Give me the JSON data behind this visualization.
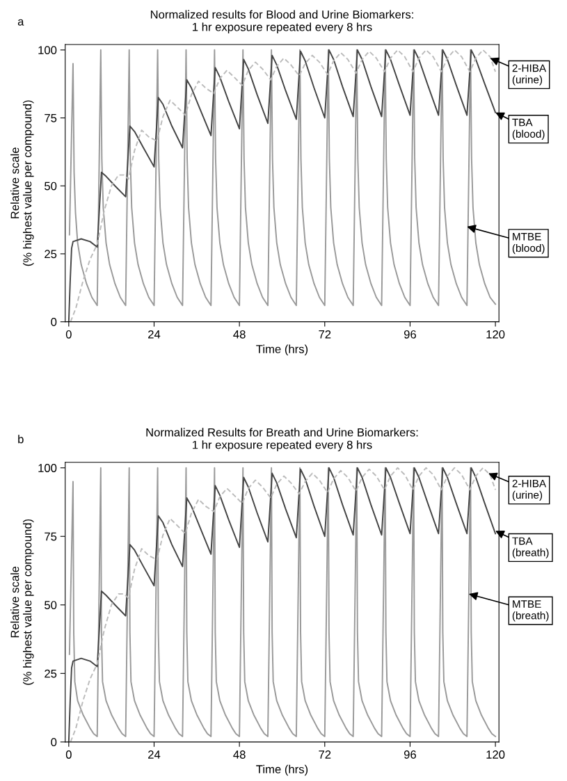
{
  "chart_data": [
    {
      "type": "line",
      "title": "Normalized results for Blood and Urine Biomarkers:\n1 hr exposure repeated every 8 hrs",
      "xlabel": "Time (hrs)",
      "ylabel": "Relative scale\n(% highest value per compound)",
      "xlim": [
        -1,
        121
      ],
      "ylim": [
        0,
        102
      ],
      "xticks": [
        0,
        24,
        48,
        72,
        96,
        120
      ],
      "yticks": [
        0,
        25,
        50,
        75,
        100
      ],
      "series": [
        {
          "color": "#999999",
          "line_style": "solid",
          "x": [
            0.2,
            1.2,
            1.5,
            1.9,
            2.5,
            3.5,
            5,
            6.5,
            8,
            9,
            9.3,
            9.7,
            10.5,
            11.5,
            13,
            14.5,
            16,
            17,
            17.3,
            17.7,
            18.5,
            19.5,
            21,
            22.5,
            24,
            25,
            25.3,
            25.7,
            26.5,
            27.5,
            29,
            30.5,
            32,
            33,
            33.3,
            33.7,
            34.5,
            35.5,
            37,
            38.5,
            40,
            41,
            41.3,
            41.7,
            42.5,
            43.5,
            45,
            46.5,
            48,
            49,
            49.3,
            49.7,
            50.5,
            51.5,
            53,
            54.5,
            56,
            57,
            57.3,
            57.7,
            58.5,
            59.5,
            61,
            62.5,
            64,
            65,
            65.3,
            65.7,
            66.5,
            67.5,
            69,
            70.5,
            72,
            73,
            73.3,
            73.7,
            74.5,
            75.5,
            77,
            78.5,
            80,
            81,
            81.3,
            81.7,
            82.5,
            83.5,
            85,
            86.5,
            88,
            89,
            89.3,
            89.7,
            90.5,
            91.5,
            93,
            94.5,
            96,
            97,
            97.3,
            97.7,
            98.5,
            99.5,
            101,
            102.5,
            104,
            105,
            105.3,
            105.7,
            106.5,
            107.5,
            109,
            110.5,
            112,
            113,
            113.3,
            113.7,
            114.5,
            115.5,
            117,
            118.5,
            120
          ],
          "values": [
            32,
            95,
            55,
            40,
            29,
            21,
            14,
            9,
            6,
            100,
            60,
            42,
            29,
            21,
            14,
            9,
            6,
            100,
            60,
            42,
            29,
            21,
            14,
            9,
            6,
            100,
            60,
            42,
            29,
            21,
            14,
            9,
            6,
            100,
            60,
            42,
            29,
            21,
            14,
            9,
            6,
            100,
            60,
            42,
            29,
            21,
            14,
            9,
            6,
            100,
            60,
            42,
            29,
            21,
            14,
            9,
            6,
            100,
            60,
            42,
            29,
            21,
            14,
            9,
            6,
            100,
            60,
            42,
            29,
            21,
            14,
            9,
            6,
            100,
            60,
            42,
            29,
            21,
            14,
            9,
            6,
            100,
            60,
            42,
            29,
            21,
            14,
            9,
            6,
            100,
            60,
            42,
            29,
            21,
            14,
            9,
            6,
            100,
            60,
            42,
            29,
            21,
            14,
            9,
            6,
            100,
            60,
            42,
            29,
            21,
            14,
            9,
            6,
            100,
            60,
            42,
            29,
            21,
            14,
            9,
            6.5
          ]
        },
        {
          "color": "#444444",
          "line_style": "solid",
          "x": [
            0,
            0.4,
            0.8,
            1.2,
            3.5,
            6,
            8,
            9.2,
            10.5,
            13,
            16,
            17.2,
            18.5,
            21,
            24,
            25.2,
            26.5,
            29,
            32,
            33.2,
            34.5,
            37,
            40,
            41.2,
            42.5,
            45,
            48,
            49.2,
            50.5,
            53,
            56,
            57.2,
            58.5,
            61,
            64,
            65.2,
            66.5,
            69,
            72,
            73.2,
            74.5,
            77,
            80,
            81.2,
            82.5,
            85,
            88,
            89.2,
            90.5,
            93,
            96,
            97.2,
            98.5,
            101,
            104,
            105.2,
            106.5,
            109,
            112,
            113.2,
            114.5,
            117,
            120
          ],
          "values": [
            0,
            15,
            27,
            29.5,
            30.5,
            29.5,
            27.5,
            55,
            53.5,
            50,
            46,
            72,
            70,
            64,
            57,
            82.5,
            80,
            72,
            64,
            89,
            86,
            78,
            68.5,
            93.5,
            90,
            81,
            71,
            96.5,
            93,
            83.5,
            73,
            98,
            94.5,
            85,
            74.5,
            99.5,
            96,
            86,
            75,
            100,
            96.5,
            86.5,
            75.5,
            100,
            96.5,
            86.5,
            75.5,
            100,
            96.5,
            87,
            76,
            100,
            96.5,
            87,
            76,
            100,
            96.5,
            87,
            76,
            100,
            96.5,
            87.5,
            77
          ]
        },
        {
          "color": "#bbbbbb",
          "line_style": "dashed",
          "x": [
            0.5,
            2,
            4,
            6,
            8,
            10,
            12,
            14,
            15.5,
            16.8,
            18.5,
            20.5,
            22.5,
            24.8,
            26.5,
            28.5,
            30.5,
            32.8,
            34.5,
            36.5,
            38.5,
            40.8,
            42.5,
            44.5,
            46.5,
            48.8,
            50.5,
            52.5,
            54.5,
            56.8,
            58.5,
            60.5,
            62.5,
            64.8,
            66.5,
            68.5,
            70.5,
            72.8,
            74.5,
            76.5,
            78.5,
            80.8,
            82.5,
            84.5,
            86.5,
            88.8,
            90.5,
            92.5,
            94.5,
            96.8,
            98.5,
            100.5,
            102.5,
            104.8,
            106.5,
            108.5,
            110.5,
            112.8,
            114.5,
            116.5,
            118.5,
            120
          ],
          "values": [
            0,
            5,
            15,
            23,
            28.5,
            41,
            50,
            54,
            54,
            52.5,
            63,
            70.5,
            68,
            66.5,
            75.5,
            81.5,
            79,
            76,
            83.5,
            88.5,
            86,
            84,
            89.5,
            92.5,
            90,
            87,
            92.5,
            95.5,
            93,
            89,
            94,
            97,
            94.5,
            90.5,
            95,
            98,
            95.5,
            91,
            96,
            99,
            96.5,
            91.5,
            96.5,
            99.5,
            97,
            92,
            97,
            100,
            97.5,
            92,
            97,
            100,
            97.5,
            92,
            97,
            100,
            97.5,
            92,
            97,
            100,
            97.5,
            92
          ]
        }
      ],
      "annotations": [
        "a",
        {
          "text": "2-HIBA\n(urine)",
          "x": 118.5,
          "y": 97
        },
        {
          "text": "TBA\n(blood)",
          "x": 120,
          "y": 77
        },
        {
          "text": "MTBE\n(blood)",
          "x": 112,
          "y": 35
        }
      ]
    },
    {
      "type": "line",
      "title": "Normalized Results for Breath and Urine Biomarkers:\n1 hr exposure repeated every 8 hrs",
      "xlabel": "Time (hrs)",
      "ylabel": "Relative scale\n(% highest value per compound)",
      "xlim": [
        -1,
        121
      ],
      "ylim": [
        0,
        102
      ],
      "xticks": [
        0,
        24,
        48,
        72,
        96,
        120
      ],
      "yticks": [
        0,
        25,
        50,
        75,
        100
      ],
      "series": [
        {
          "color": "#999999",
          "line_style": "solid",
          "x": [
            0.2,
            1.2,
            1.4,
            1.7,
            2.5,
            4,
            6,
            7,
            8,
            9,
            9.2,
            9.5,
            10.5,
            12,
            14,
            15,
            16,
            17,
            17.2,
            17.5,
            18.5,
            20,
            22,
            23,
            24,
            25,
            25.2,
            25.5,
            26.5,
            28,
            30,
            31,
            32,
            33,
            33.2,
            33.5,
            34.5,
            36,
            38,
            39,
            40,
            41,
            41.2,
            41.5,
            42.5,
            44,
            46,
            47,
            48,
            49,
            49.2,
            49.5,
            50.5,
            52,
            54,
            55,
            56,
            57,
            57.2,
            57.5,
            58.5,
            60,
            62,
            63,
            64,
            65,
            65.2,
            65.5,
            66.5,
            68,
            70,
            71,
            72,
            73,
            73.2,
            73.5,
            74.5,
            76,
            78,
            79,
            80,
            81,
            81.2,
            81.5,
            82.5,
            84,
            86,
            87,
            88,
            89,
            89.2,
            89.5,
            90.5,
            92,
            94,
            95,
            96,
            97,
            97.2,
            97.5,
            98.5,
            100,
            102,
            103,
            104,
            105,
            105.2,
            105.5,
            106.5,
            108,
            110,
            111,
            112,
            113,
            113.2,
            113.5,
            114.5,
            116,
            118,
            119,
            120
          ],
          "values": [
            32,
            95,
            40,
            22,
            15,
            10,
            5,
            3,
            2,
            100,
            40,
            22,
            15,
            10,
            5,
            3,
            2,
            100,
            40,
            22,
            15,
            10,
            5,
            3,
            2,
            100,
            40,
            22,
            15,
            10,
            5,
            3,
            2,
            100,
            40,
            22,
            15,
            10,
            5,
            3,
            2,
            100,
            40,
            22,
            15,
            10,
            5,
            3,
            2,
            100,
            40,
            22,
            15,
            10,
            5,
            3,
            2,
            100,
            40,
            22,
            15,
            10,
            5,
            3,
            2,
            100,
            40,
            22,
            15,
            10,
            5,
            3,
            2,
            100,
            40,
            22,
            15,
            10,
            5,
            3,
            2,
            100,
            40,
            22,
            15,
            10,
            5,
            3,
            2,
            100,
            40,
            22,
            15,
            10,
            5,
            3,
            2,
            100,
            40,
            22,
            15,
            10,
            5,
            3,
            2,
            100,
            40,
            22,
            15,
            10,
            5,
            3,
            2,
            100,
            40,
            22,
            15,
            10,
            5,
            3,
            2
          ]
        },
        {
          "color": "#444444",
          "line_style": "solid",
          "x": [
            0,
            0.4,
            0.8,
            1.2,
            3.5,
            6,
            8,
            9.2,
            10.5,
            13,
            16,
            17.2,
            18.5,
            21,
            24,
            25.2,
            26.5,
            29,
            32,
            33.2,
            34.5,
            37,
            40,
            41.2,
            42.5,
            45,
            48,
            49.2,
            50.5,
            53,
            56,
            57.2,
            58.5,
            61,
            64,
            65.2,
            66.5,
            69,
            72,
            73.2,
            74.5,
            77,
            80,
            81.2,
            82.5,
            85,
            88,
            89.2,
            90.5,
            93,
            96,
            97.2,
            98.5,
            101,
            104,
            105.2,
            106.5,
            109,
            112,
            113.2,
            114.5,
            117,
            120
          ],
          "values": [
            0,
            15,
            27,
            29.5,
            30.5,
            29.5,
            27.5,
            55,
            53.5,
            50,
            46,
            72,
            70,
            64,
            57,
            82.5,
            80,
            72,
            64,
            89,
            86,
            78,
            68.5,
            93.5,
            90,
            81,
            71,
            96.5,
            93,
            83.5,
            73,
            98,
            94.5,
            85,
            74.5,
            99.5,
            96,
            86,
            75,
            100,
            96.5,
            86.5,
            75.5,
            100,
            96.5,
            86.5,
            75.5,
            100,
            96.5,
            87,
            76,
            100,
            96.5,
            87,
            76,
            100,
            96.5,
            87,
            76,
            100,
            96.5,
            87,
            76
          ]
        },
        {
          "color": "#bbbbbb",
          "line_style": "dashed",
          "x": [
            0.5,
            2,
            4,
            6,
            8,
            10,
            12,
            14,
            15.5,
            16.8,
            18.5,
            20.5,
            22.5,
            24.8,
            26.5,
            28.5,
            30.5,
            32.8,
            34.5,
            36.5,
            38.5,
            40.8,
            42.5,
            44.5,
            46.5,
            48.8,
            50.5,
            52.5,
            54.5,
            56.8,
            58.5,
            60.5,
            62.5,
            64.8,
            66.5,
            68.5,
            70.5,
            72.8,
            74.5,
            76.5,
            78.5,
            80.8,
            82.5,
            84.5,
            86.5,
            88.8,
            90.5,
            92.5,
            94.5,
            96.8,
            98.5,
            100.5,
            102.5,
            104.8,
            106.5,
            108.5,
            110.5,
            112.8,
            114.5,
            116.5,
            118.5,
            120
          ],
          "values": [
            0,
            5,
            15,
            23,
            28.5,
            41,
            50,
            54,
            54,
            52.5,
            63,
            70.5,
            68,
            66.5,
            75.5,
            81.5,
            79,
            76,
            83.5,
            88.5,
            86,
            84,
            89.5,
            92.5,
            90,
            87,
            92.5,
            95.5,
            93,
            89,
            94,
            97,
            94.5,
            90.5,
            95,
            98,
            95.5,
            91,
            96,
            99,
            96.5,
            91.5,
            96.5,
            99.5,
            97,
            92,
            97,
            100,
            97.5,
            92,
            97,
            100,
            97.5,
            92,
            97,
            100,
            97.5,
            92,
            97,
            100,
            97.5,
            92
          ]
        }
      ],
      "annotations": [
        "b",
        {
          "text": "2-HIBA\n(urine)",
          "x": 118,
          "y": 98
        },
        {
          "text": "TBA\n(breath)",
          "x": 120,
          "y": 77
        },
        {
          "text": "MTBE\n(breath)",
          "x": 112.5,
          "y": 54
        }
      ]
    }
  ]
}
